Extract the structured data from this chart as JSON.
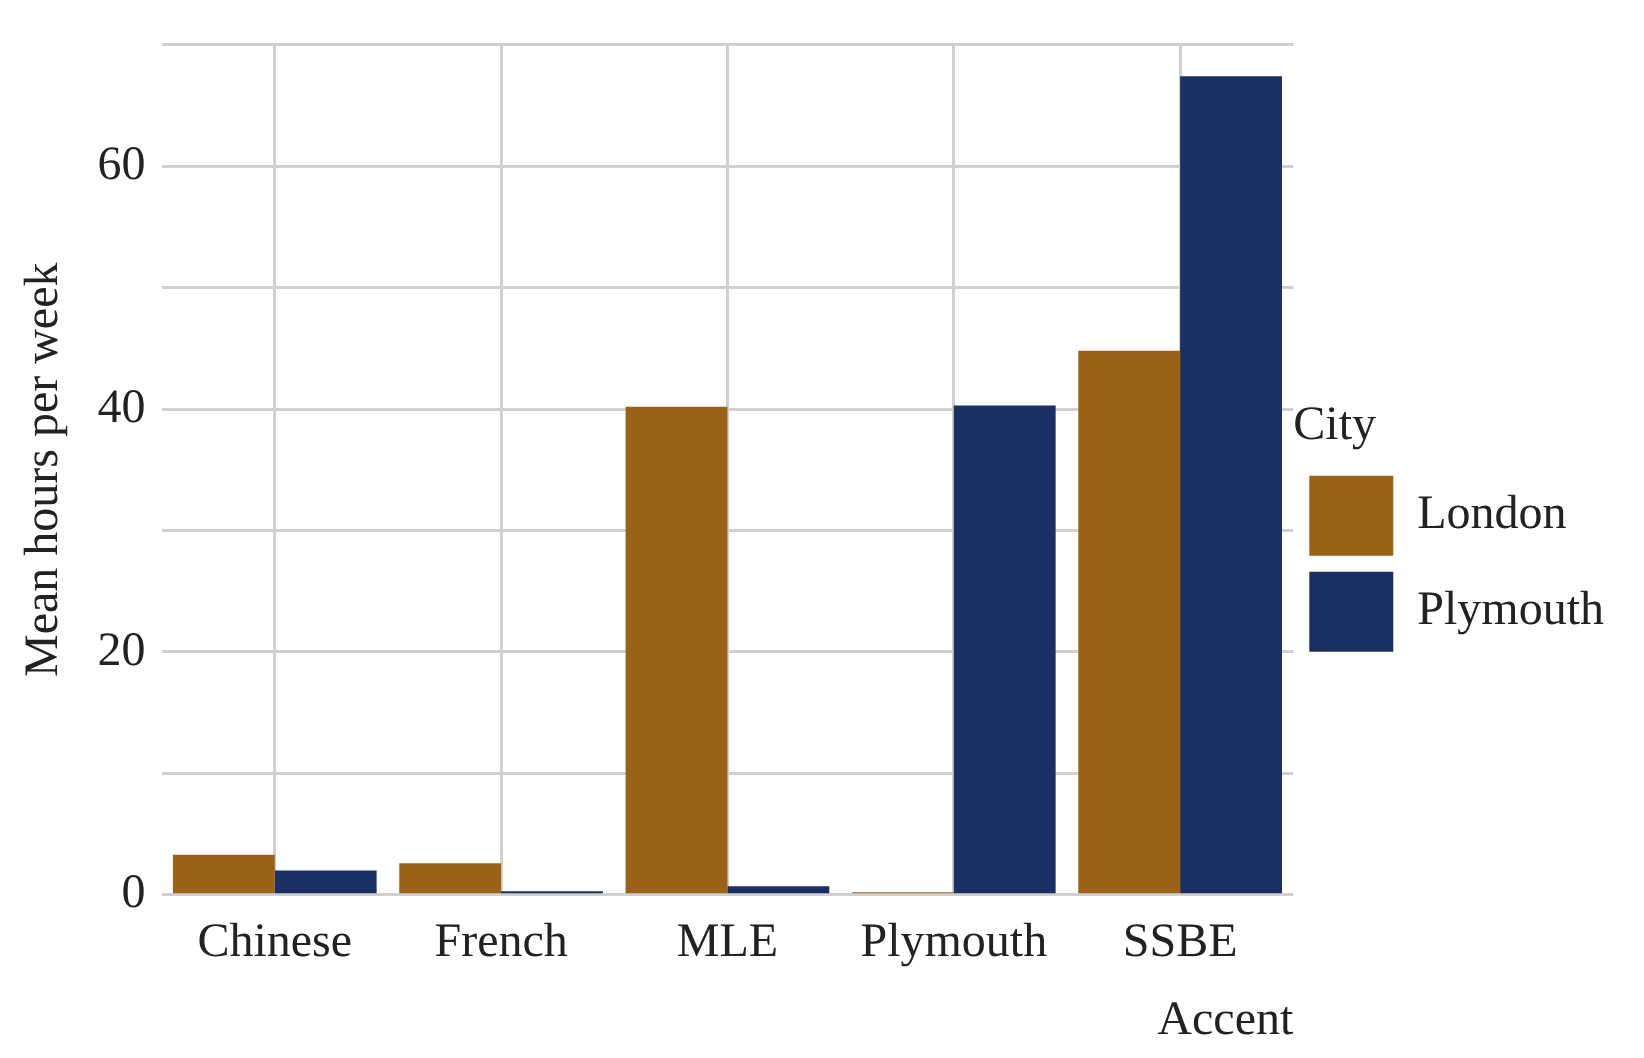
{
  "chart_data": {
    "type": "bar",
    "xlabel": "Accent",
    "ylabel": "Mean hours per week",
    "legend_title": "City",
    "categories": [
      "Chinese",
      "French",
      "MLE",
      "Plymouth",
      "SSBE"
    ],
    "series": [
      {
        "name": "London",
        "color": "#9c6219",
        "values": [
          3.3,
          2.6,
          40.2,
          0.2,
          44.8
        ]
      },
      {
        "name": "Plymouth",
        "color": "#1b2f63",
        "values": [
          2.0,
          0.3,
          0.7,
          40.3,
          67.4
        ]
      }
    ],
    "ylim": [
      0,
      70
    ],
    "yticks": [
      0,
      {
        "value": 10,
        "label": null
      },
      20,
      {
        "value": 30,
        "label": null
      },
      40,
      {
        "value": 50,
        "label": null
      },
      60,
      {
        "value": 70,
        "label": null
      }
    ],
    "grid": true,
    "legend": "right"
  }
}
